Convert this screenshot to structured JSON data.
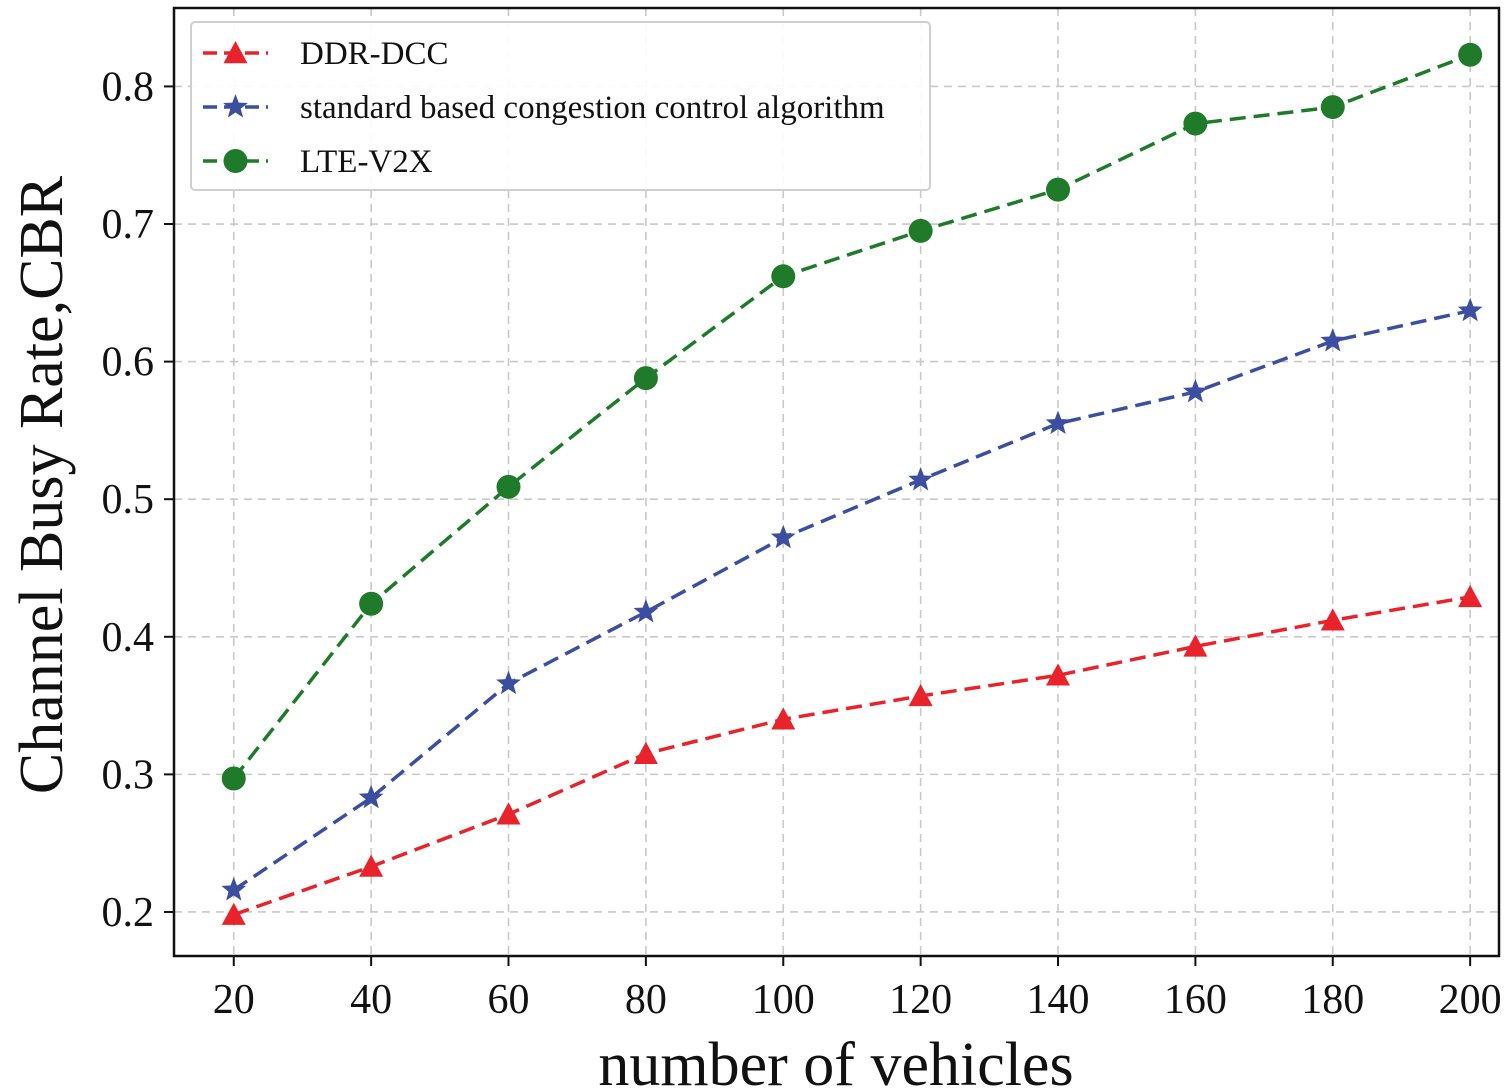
{
  "chart_data": {
    "type": "line",
    "title": "",
    "xlabel": "number of vehicles",
    "ylabel": "Channel Busy Rate,CBR",
    "x": [
      20,
      40,
      60,
      80,
      100,
      120,
      140,
      160,
      180,
      200
    ],
    "xticks": [
      "20",
      "40",
      "60",
      "80",
      "100",
      "120",
      "140",
      "160",
      "180",
      "200"
    ],
    "yticks": [
      "0.2",
      "0.3",
      "0.4",
      "0.5",
      "0.6",
      "0.7",
      "0.8"
    ],
    "xlim": [
      11.3,
      204.2
    ],
    "ylim": [
      0.168,
      0.857
    ],
    "grid": true,
    "legend_position": "top-left",
    "series": [
      {
        "name": "DDR-DCC",
        "color": "#e8232b",
        "marker": "triangle",
        "values": [
          0.198,
          0.233,
          0.271,
          0.315,
          0.34,
          0.357,
          0.372,
          0.393,
          0.412,
          0.429
        ]
      },
      {
        "name": "standard based congestion control algorithm",
        "color": "#3c4ea0",
        "marker": "star",
        "values": [
          0.216,
          0.283,
          0.366,
          0.418,
          0.472,
          0.514,
          0.555,
          0.578,
          0.615,
          0.637
        ]
      },
      {
        "name": "LTE-V2X",
        "color": "#1f7a2a",
        "marker": "circle",
        "values": [
          0.297,
          0.424,
          0.509,
          0.588,
          0.662,
          0.695,
          0.725,
          0.773,
          0.785,
          0.823
        ]
      }
    ]
  }
}
